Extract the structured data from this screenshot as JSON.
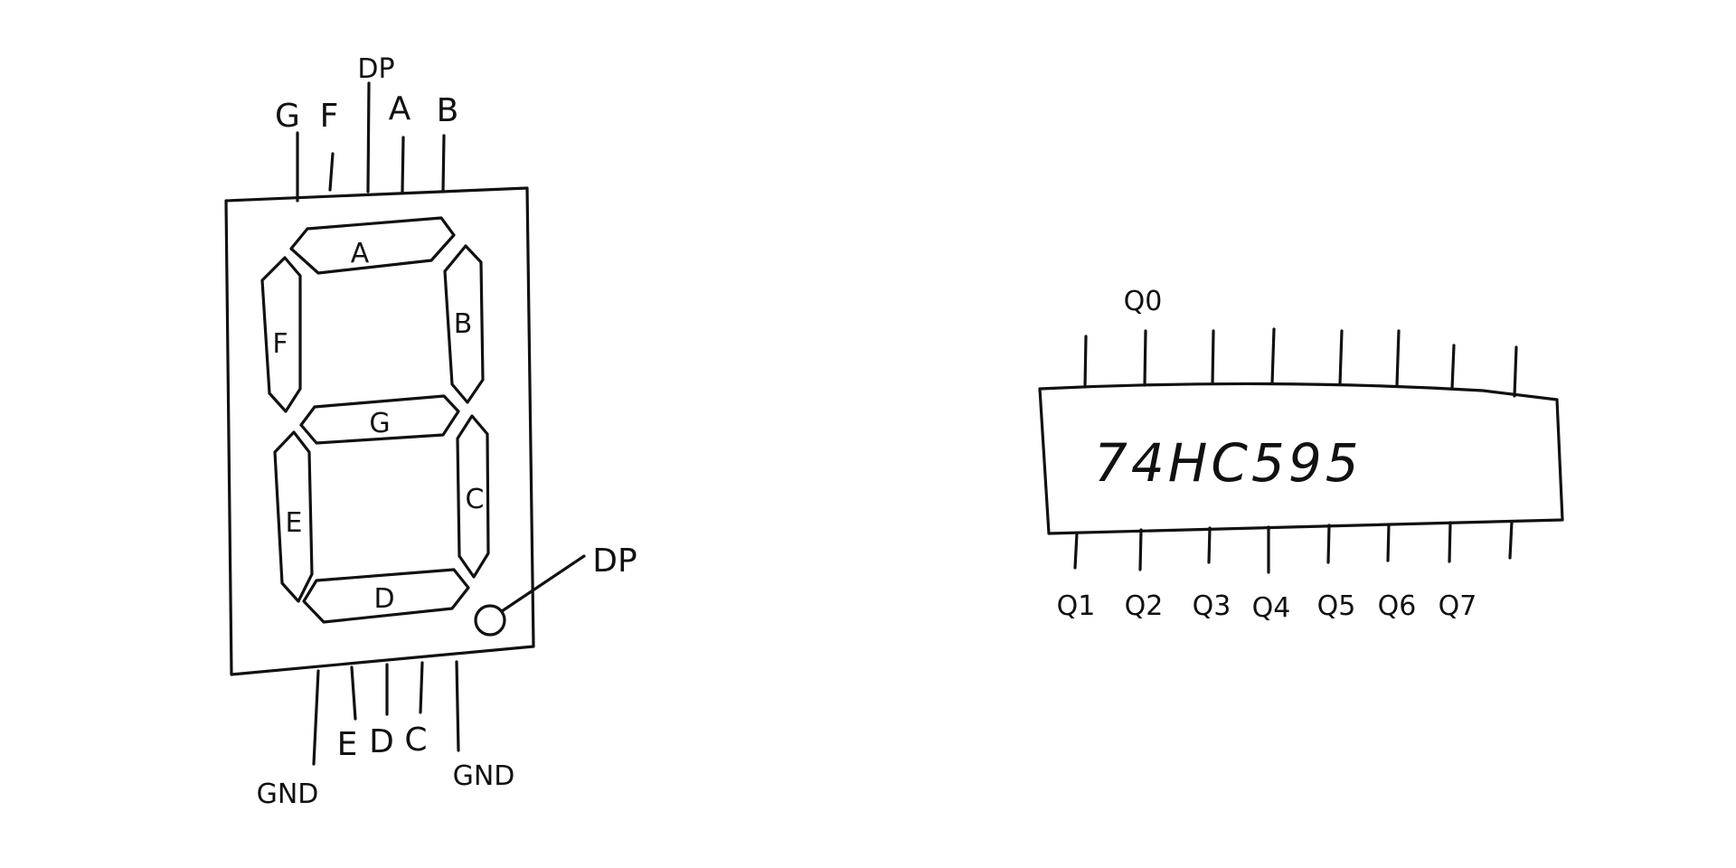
{
  "seven_segment_display": {
    "top_pins": [
      "G",
      "F",
      "DP",
      "A",
      "B"
    ],
    "segments": [
      "A",
      "B",
      "C",
      "D",
      "E",
      "F",
      "G"
    ],
    "dp_label": "DP",
    "bottom_pins": [
      "GND",
      "E",
      "D",
      "C",
      "GND"
    ]
  },
  "shift_register": {
    "name": "74HC595",
    "top_label": "Q0",
    "bottom_pins": [
      "Q1",
      "Q2",
      "Q3",
      "Q4",
      "Q5",
      "Q6",
      "Q7"
    ]
  }
}
